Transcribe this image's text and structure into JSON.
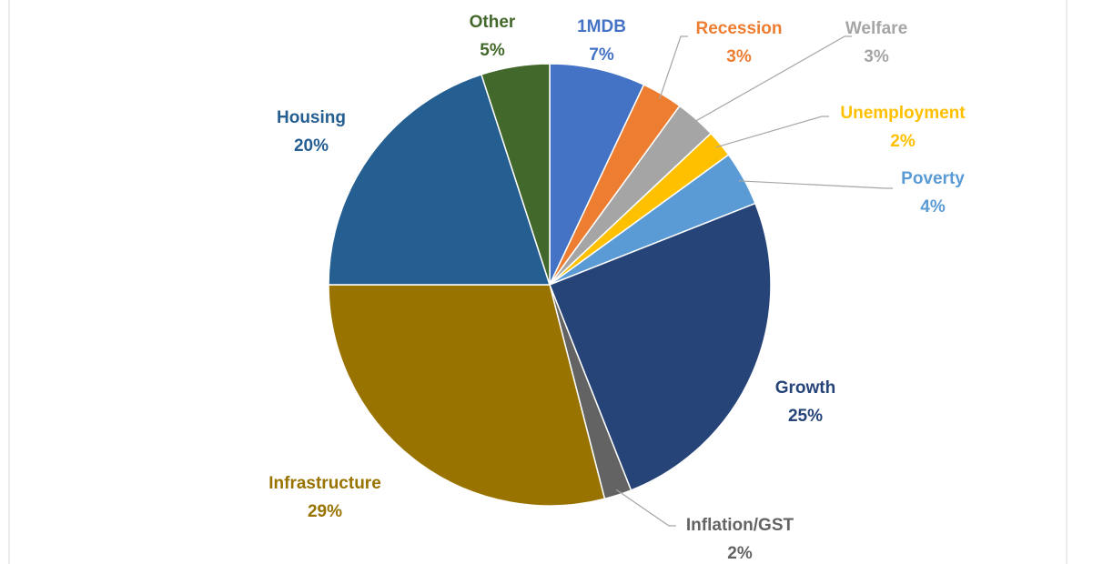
{
  "chart_data": {
    "type": "pie",
    "categories": [
      "1MDB",
      "Recession",
      "Welfare",
      "Unemployment",
      "Poverty",
      "Growth",
      "Inflation/GST",
      "Infrastructure",
      "Housing",
      "Other"
    ],
    "values": [
      7,
      3,
      3,
      2,
      4,
      25,
      2,
      29,
      20,
      5
    ],
    "value_labels": [
      "7%",
      "3%",
      "3%",
      "2%",
      "4%",
      "25%",
      "2%",
      "29%",
      "20%",
      "5%"
    ],
    "colors": [
      "#4472c4",
      "#ed7d31",
      "#a5a5a5",
      "#ffc000",
      "#5b9bd5",
      "#264478",
      "#636363",
      "#997300",
      "#255e91",
      "#43682b"
    ]
  }
}
